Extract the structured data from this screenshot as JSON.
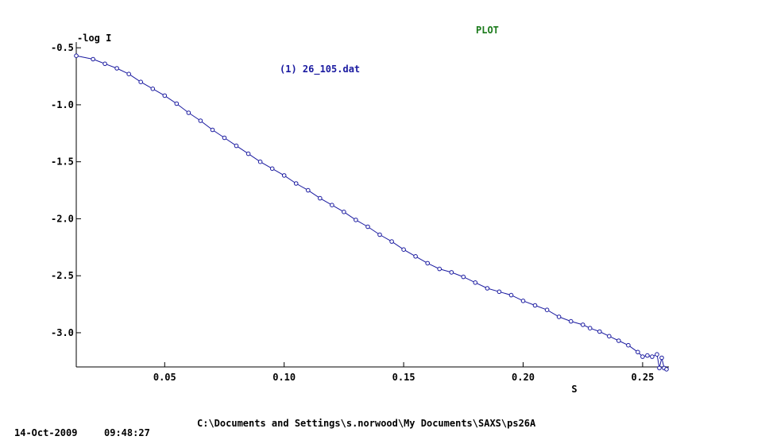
{
  "app": {
    "title": "PLOT"
  },
  "footer": {
    "path": "C:\\Documents and Settings\\s.norwood\\My Documents\\SAXS\\ps26A",
    "date": "14-Oct-2009",
    "time": "09:48:27"
  },
  "colors": {
    "series": "#1a1aa0",
    "title": "#1a7a1a",
    "axis": "#000000"
  },
  "chart_data": {
    "type": "scatter",
    "title": "",
    "xlabel": "S",
    "ylabel": "-log I",
    "xlim": [
      0.013,
      0.261
    ],
    "ylim": [
      -3.3,
      -0.45
    ],
    "xticks": [
      0.05,
      0.1,
      0.15,
      0.2,
      0.25
    ],
    "xtick_labels": [
      "0.05",
      "0.10",
      "0.15",
      "0.20",
      "0.25"
    ],
    "yticks": [
      -0.5,
      -1.0,
      -1.5,
      -2.0,
      -2.5,
      -3.0
    ],
    "ytick_labels": [
      "-0.5",
      "-1.0",
      "-1.5",
      "-2.0",
      "-2.5",
      "-3.0"
    ],
    "grid": false,
    "legend": "top-center",
    "series": [
      {
        "name": "(1) 26_105.dat",
        "line": true,
        "marker": "circle",
        "x": [
          0.013,
          0.02,
          0.025,
          0.03,
          0.035,
          0.04,
          0.045,
          0.05,
          0.055,
          0.06,
          0.065,
          0.07,
          0.075,
          0.08,
          0.085,
          0.09,
          0.095,
          0.1,
          0.105,
          0.11,
          0.115,
          0.12,
          0.125,
          0.13,
          0.135,
          0.14,
          0.145,
          0.15,
          0.155,
          0.16,
          0.165,
          0.17,
          0.175,
          0.18,
          0.185,
          0.19,
          0.195,
          0.2,
          0.205,
          0.21,
          0.215,
          0.22,
          0.225,
          0.228,
          0.232,
          0.236,
          0.24,
          0.244,
          0.248,
          0.25,
          0.252,
          0.254,
          0.256,
          0.257,
          0.258,
          0.259,
          0.26
        ],
        "y": [
          -0.57,
          -0.6,
          -0.64,
          -0.68,
          -0.73,
          -0.8,
          -0.86,
          -0.92,
          -0.99,
          -1.07,
          -1.14,
          -1.22,
          -1.29,
          -1.36,
          -1.43,
          -1.5,
          -1.56,
          -1.62,
          -1.69,
          -1.75,
          -1.82,
          -1.88,
          -1.94,
          -2.01,
          -2.07,
          -2.14,
          -2.2,
          -2.27,
          -2.33,
          -2.39,
          -2.44,
          -2.47,
          -2.51,
          -2.56,
          -2.61,
          -2.64,
          -2.67,
          -2.72,
          -2.76,
          -2.8,
          -2.86,
          -2.9,
          -2.93,
          -2.96,
          -2.99,
          -3.03,
          -3.07,
          -3.11,
          -3.17,
          -3.21,
          -3.2,
          -3.21,
          -3.19,
          -3.31,
          -3.22,
          -3.31,
          -3.32
        ]
      }
    ]
  }
}
